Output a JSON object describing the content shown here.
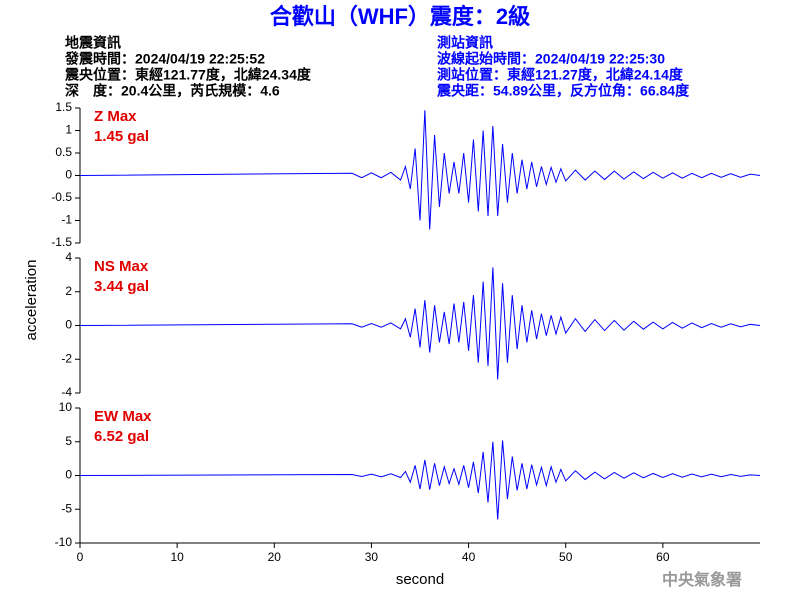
{
  "header": {
    "title": "合歡山（WHF）震度：2級",
    "left": [
      "地震資訊",
      "發震時間：2024/04/19 22:25:52",
      "震央位置：東經121.77度，北緯24.34度",
      "深　度：20.4公里，芮氏規模：4.6"
    ],
    "right": [
      "測站資訊",
      "波線起始時間：2024/04/19 22:25:30",
      "測站位置：東經121.27度，北緯24.14度",
      "震央距：54.89公里，反方位角：66.84度"
    ],
    "footer": "中央氣象署"
  },
  "chart_data": [
    {
      "type": "line",
      "color": "#0000ff",
      "annotations": [
        "Z Max",
        "1.45 gal"
      ],
      "xlim": [
        0,
        70
      ],
      "ylim": [
        -1.5,
        1.5
      ],
      "yticks": [
        -1.5,
        -1,
        -0.5,
        0,
        0.5,
        1,
        1.5
      ],
      "x": [
        0,
        28,
        29,
        30,
        31,
        32,
        33,
        33.5,
        34,
        34.5,
        35,
        35.5,
        36,
        36.5,
        37,
        37.5,
        38,
        38.5,
        39,
        39.5,
        40,
        40.5,
        41,
        41.5,
        42,
        42.5,
        43,
        43.5,
        44,
        44.5,
        45,
        45.5,
        46,
        46.5,
        47,
        47.5,
        48,
        48.5,
        49,
        49.5,
        50,
        51,
        52,
        53,
        54,
        55,
        56,
        57,
        58,
        59,
        60,
        61,
        62,
        63,
        64,
        65,
        66,
        67,
        68,
        69,
        70
      ],
      "values": [
        0,
        0.05,
        -0.05,
        0.06,
        -0.05,
        0.07,
        -0.1,
        0.2,
        -0.3,
        0.6,
        -1.0,
        1.45,
        -1.2,
        0.9,
        -0.7,
        0.5,
        -0.4,
        0.3,
        -0.4,
        0.5,
        -0.6,
        0.8,
        -0.8,
        1.0,
        -0.9,
        1.1,
        -0.9,
        0.7,
        -0.6,
        0.5,
        -0.4,
        0.35,
        -0.3,
        0.3,
        -0.25,
        0.2,
        -0.2,
        0.18,
        -0.15,
        0.15,
        -0.12,
        0.12,
        -0.1,
        0.1,
        -0.09,
        0.1,
        -0.08,
        0.08,
        -0.07,
        0.07,
        -0.06,
        0.06,
        -0.06,
        0.05,
        -0.05,
        0.05,
        -0.04,
        0.04,
        -0.04,
        0.03,
        0
      ]
    },
    {
      "type": "line",
      "color": "#0000ff",
      "annotations": [
        "NS Max",
        "3.44 gal"
      ],
      "ylabel": "acceleration",
      "xlim": [
        0,
        70
      ],
      "ylim": [
        -4,
        4
      ],
      "yticks": [
        -4,
        -2,
        0,
        2,
        4
      ],
      "x": [
        0,
        28,
        29,
        30,
        31,
        32,
        33,
        33.5,
        34,
        34.5,
        35,
        35.5,
        36,
        36.5,
        37,
        37.5,
        38,
        38.5,
        39,
        39.5,
        40,
        40.5,
        41,
        41.5,
        42,
        42.5,
        43,
        43.5,
        44,
        44.5,
        45,
        45.5,
        46,
        46.5,
        47,
        47.5,
        48,
        48.5,
        49,
        49.5,
        50,
        51,
        52,
        53,
        54,
        55,
        56,
        57,
        58,
        59,
        60,
        61,
        62,
        63,
        64,
        65,
        66,
        67,
        68,
        69,
        70
      ],
      "values": [
        0,
        0.1,
        -0.1,
        0.12,
        -0.1,
        0.15,
        -0.2,
        0.4,
        -0.7,
        1.0,
        -1.3,
        1.5,
        -1.6,
        1.2,
        -1.0,
        0.8,
        -1.1,
        1.3,
        -1.0,
        1.4,
        -1.5,
        1.8,
        -2.2,
        2.6,
        -2.4,
        3.44,
        -3.2,
        2.5,
        -2.2,
        1.8,
        -1.4,
        1.2,
        -1.0,
        0.9,
        -0.8,
        0.7,
        -0.6,
        0.6,
        -0.5,
        0.5,
        -0.45,
        0.4,
        -0.35,
        0.35,
        -0.3,
        0.3,
        -0.28,
        0.25,
        -0.22,
        0.2,
        -0.2,
        0.18,
        -0.16,
        0.15,
        -0.13,
        0.12,
        -0.1,
        0.1,
        -0.08,
        0.07,
        0
      ]
    },
    {
      "type": "line",
      "color": "#0000ff",
      "annotations": [
        "EW Max",
        "6.52 gal"
      ],
      "xlabel": "second",
      "xlim": [
        0,
        70
      ],
      "xticks": [
        0,
        10,
        20,
        30,
        40,
        50,
        60
      ],
      "ylim": [
        -10,
        10
      ],
      "yticks": [
        -10,
        -5,
        0,
        5,
        10
      ],
      "x": [
        0,
        28,
        29,
        30,
        31,
        32,
        33,
        33.5,
        34,
        34.5,
        35,
        35.5,
        36,
        36.5,
        37,
        37.5,
        38,
        38.5,
        39,
        39.5,
        40,
        40.5,
        41,
        41.5,
        42,
        42.5,
        43,
        43.5,
        44,
        44.5,
        45,
        45.5,
        46,
        46.5,
        47,
        47.5,
        48,
        48.5,
        49,
        49.5,
        50,
        51,
        52,
        53,
        54,
        55,
        56,
        57,
        58,
        59,
        60,
        61,
        62,
        63,
        64,
        65,
        66,
        67,
        68,
        69,
        70
      ],
      "values": [
        0,
        0.15,
        -0.15,
        0.2,
        -0.2,
        0.25,
        -0.3,
        0.6,
        -1.0,
        1.5,
        -2.0,
        2.3,
        -2.1,
        1.8,
        -1.5,
        1.3,
        -1.2,
        1.0,
        -1.3,
        1.5,
        -1.8,
        2.0,
        -2.6,
        3.5,
        -4.0,
        5.0,
        -6.52,
        5.2,
        -3.5,
        2.8,
        -2.2,
        1.8,
        -2.0,
        1.6,
        -1.4,
        1.2,
        -1.5,
        1.3,
        -1.0,
        0.9,
        -0.8,
        0.7,
        -0.6,
        0.5,
        -0.5,
        0.45,
        -0.4,
        0.4,
        -0.35,
        0.3,
        -0.3,
        0.28,
        -0.25,
        0.22,
        -0.2,
        0.2,
        -0.18,
        0.15,
        -0.12,
        0.1,
        0
      ]
    }
  ]
}
